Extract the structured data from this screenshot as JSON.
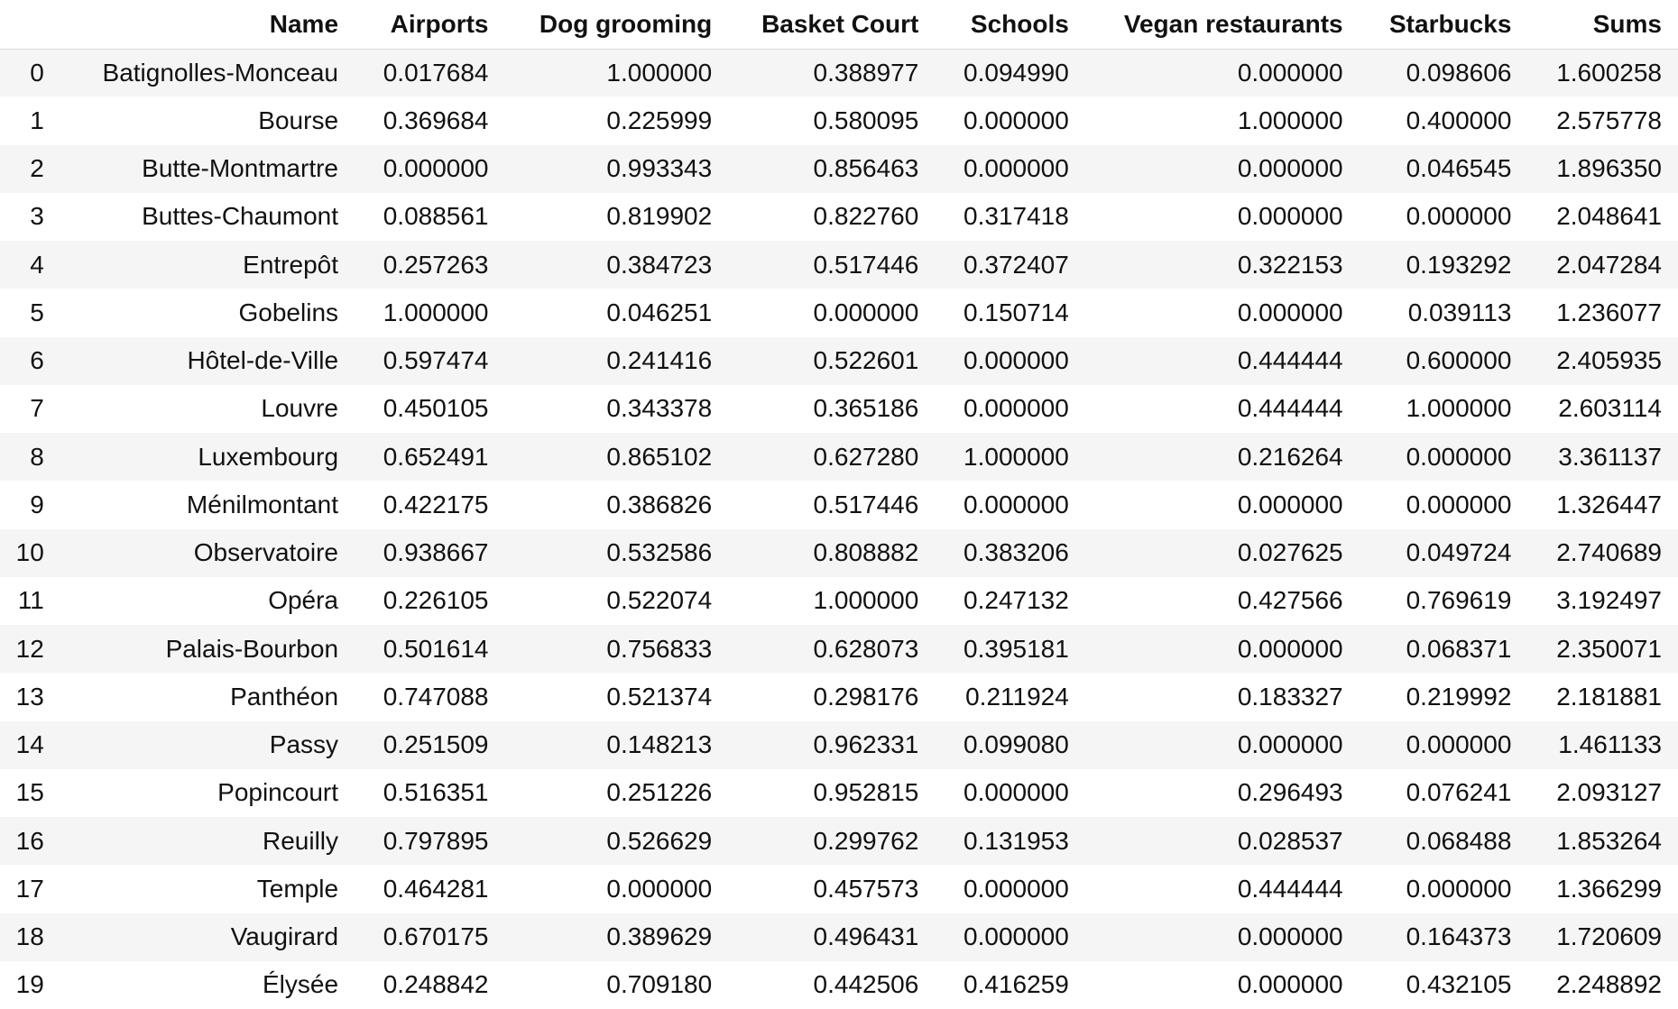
{
  "table": {
    "columns": [
      "Name",
      "Airports",
      "Dog grooming",
      "Basket Court",
      "Schools",
      "Vegan restaurants",
      "Starbucks",
      "Sums"
    ],
    "rows": [
      {
        "index": "0",
        "cells": [
          "Batignolles-Monceau",
          "0.017684",
          "1.000000",
          "0.388977",
          "0.094990",
          "0.000000",
          "0.098606",
          "1.600258"
        ]
      },
      {
        "index": "1",
        "cells": [
          "Bourse",
          "0.369684",
          "0.225999",
          "0.580095",
          "0.000000",
          "1.000000",
          "0.400000",
          "2.575778"
        ]
      },
      {
        "index": "2",
        "cells": [
          "Butte-Montmartre",
          "0.000000",
          "0.993343",
          "0.856463",
          "0.000000",
          "0.000000",
          "0.046545",
          "1.896350"
        ]
      },
      {
        "index": "3",
        "cells": [
          "Buttes-Chaumont",
          "0.088561",
          "0.819902",
          "0.822760",
          "0.317418",
          "0.000000",
          "0.000000",
          "2.048641"
        ]
      },
      {
        "index": "4",
        "cells": [
          "Entrepôt",
          "0.257263",
          "0.384723",
          "0.517446",
          "0.372407",
          "0.322153",
          "0.193292",
          "2.047284"
        ]
      },
      {
        "index": "5",
        "cells": [
          "Gobelins",
          "1.000000",
          "0.046251",
          "0.000000",
          "0.150714",
          "0.000000",
          "0.039113",
          "1.236077"
        ]
      },
      {
        "index": "6",
        "cells": [
          "Hôtel-de-Ville",
          "0.597474",
          "0.241416",
          "0.522601",
          "0.000000",
          "0.444444",
          "0.600000",
          "2.405935"
        ]
      },
      {
        "index": "7",
        "cells": [
          "Louvre",
          "0.450105",
          "0.343378",
          "0.365186",
          "0.000000",
          "0.444444",
          "1.000000",
          "2.603114"
        ]
      },
      {
        "index": "8",
        "cells": [
          "Luxembourg",
          "0.652491",
          "0.865102",
          "0.627280",
          "1.000000",
          "0.216264",
          "0.000000",
          "3.361137"
        ]
      },
      {
        "index": "9",
        "cells": [
          "Ménilmontant",
          "0.422175",
          "0.386826",
          "0.517446",
          "0.000000",
          "0.000000",
          "0.000000",
          "1.326447"
        ]
      },
      {
        "index": "10",
        "cells": [
          "Observatoire",
          "0.938667",
          "0.532586",
          "0.808882",
          "0.383206",
          "0.027625",
          "0.049724",
          "2.740689"
        ]
      },
      {
        "index": "11",
        "cells": [
          "Opéra",
          "0.226105",
          "0.522074",
          "1.000000",
          "0.247132",
          "0.427566",
          "0.769619",
          "3.192497"
        ]
      },
      {
        "index": "12",
        "cells": [
          "Palais-Bourbon",
          "0.501614",
          "0.756833",
          "0.628073",
          "0.395181",
          "0.000000",
          "0.068371",
          "2.350071"
        ]
      },
      {
        "index": "13",
        "cells": [
          "Panthéon",
          "0.747088",
          "0.521374",
          "0.298176",
          "0.211924",
          "0.183327",
          "0.219992",
          "2.181881"
        ]
      },
      {
        "index": "14",
        "cells": [
          "Passy",
          "0.251509",
          "0.148213",
          "0.962331",
          "0.099080",
          "0.000000",
          "0.000000",
          "1.461133"
        ]
      },
      {
        "index": "15",
        "cells": [
          "Popincourt",
          "0.516351",
          "0.251226",
          "0.952815",
          "0.000000",
          "0.296493",
          "0.076241",
          "2.093127"
        ]
      },
      {
        "index": "16",
        "cells": [
          "Reuilly",
          "0.797895",
          "0.526629",
          "0.299762",
          "0.131953",
          "0.028537",
          "0.068488",
          "1.853264"
        ]
      },
      {
        "index": "17",
        "cells": [
          "Temple",
          "0.464281",
          "0.000000",
          "0.457573",
          "0.000000",
          "0.444444",
          "0.000000",
          "1.366299"
        ]
      },
      {
        "index": "18",
        "cells": [
          "Vaugirard",
          "0.670175",
          "0.389629",
          "0.496431",
          "0.000000",
          "0.000000",
          "0.164373",
          "1.720609"
        ]
      },
      {
        "index": "19",
        "cells": [
          "Élysée",
          "0.248842",
          "0.709180",
          "0.442506",
          "0.416259",
          "0.000000",
          "0.432105",
          "2.248892"
        ]
      }
    ]
  }
}
